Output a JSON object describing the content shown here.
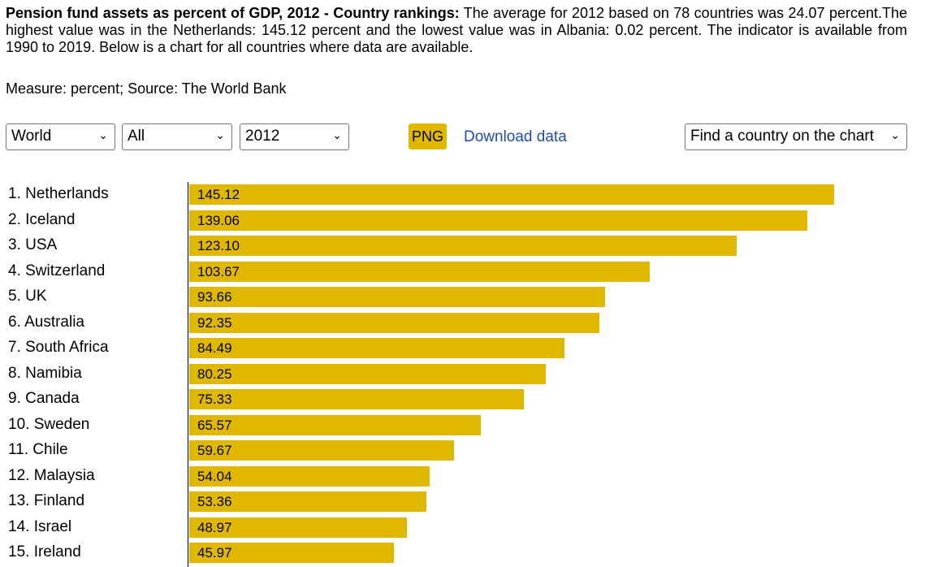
{
  "intro": {
    "title": "Pension fund assets as percent of GDP, 2012 - Country rankings:",
    "text": " The average for 2012 based on 78 countries was 24.07 percent.The highest value was in the Netherlands: 145.12 percent and the lowest value was in Albania: 0.02 percent. The indicator is available from 1990 to 2019. Below is a chart for all countries where data are available.",
    "measure": "Measure: percent; Source: The World Bank"
  },
  "controls": {
    "region": "World",
    "group": "All",
    "year": "2012",
    "png_label": "PNG",
    "download_label": "Download data",
    "find_country": "Find a country on the chart"
  },
  "colors": {
    "bar": "#e0b800",
    "link": "#1f4ea8"
  },
  "chart_data": {
    "type": "bar",
    "orientation": "horizontal",
    "categories": [
      "1. Netherlands",
      "2. Iceland",
      "3. USA",
      "4. Switzerland",
      "5. UK",
      "6. Australia",
      "7. South Africa",
      "8. Namibia",
      "9. Canada",
      "10. Sweden",
      "11. Chile",
      "12. Malaysia",
      "13. Finland",
      "14. Israel",
      "15. Ireland"
    ],
    "values": [
      145.12,
      139.06,
      123.1,
      103.67,
      93.66,
      92.35,
      84.49,
      80.25,
      75.33,
      65.57,
      59.67,
      54.04,
      53.36,
      48.97,
      45.97
    ],
    "labels": [
      "145.12",
      "139.06",
      "123.10",
      "103.67",
      "93.66",
      "92.35",
      "84.49",
      "80.25",
      "75.33",
      "65.57",
      "59.67",
      "54.04",
      "53.36",
      "48.97",
      "45.97"
    ],
    "grid": false
  }
}
